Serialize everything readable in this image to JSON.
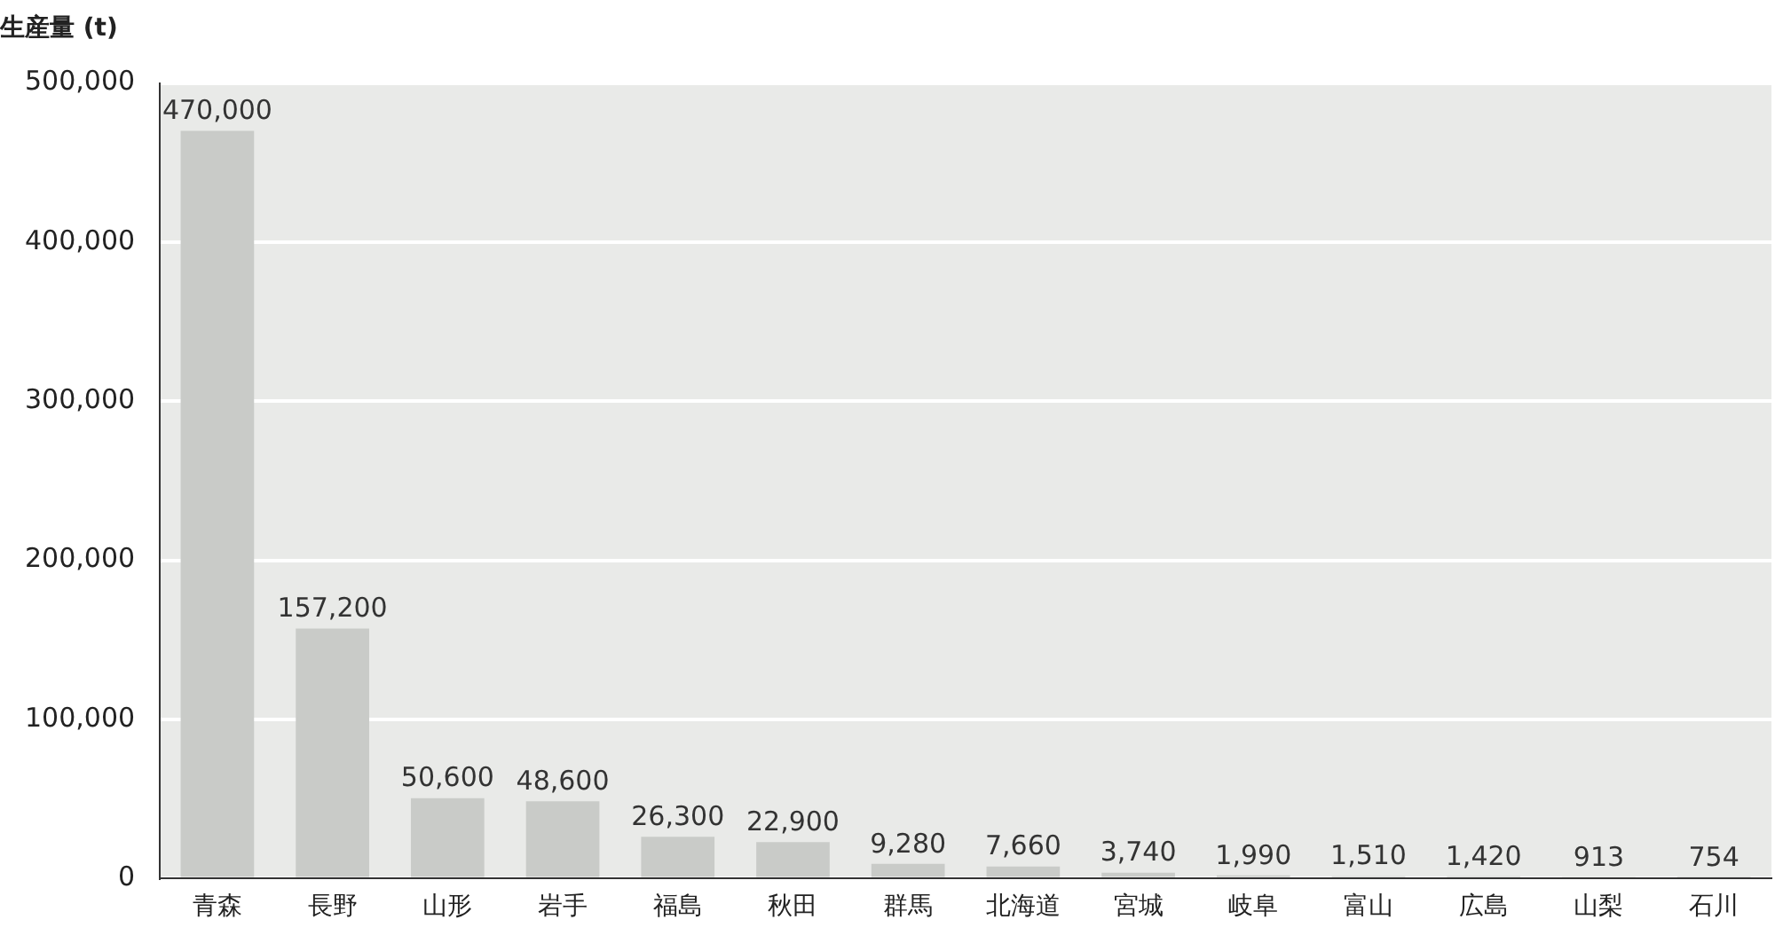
{
  "chart_data": {
    "type": "bar",
    "ylabel": "生産量 (t)",
    "categories": [
      "青森",
      "長野",
      "山形",
      "岩手",
      "福島",
      "秋田",
      "群馬",
      "北海道",
      "宮城",
      "岐阜",
      "富山",
      "広島",
      "山梨",
      "石川"
    ],
    "values": [
      470000,
      157200,
      50600,
      48600,
      26300,
      22900,
      9280,
      7660,
      3740,
      1990,
      1510,
      1420,
      913,
      754
    ],
    "value_labels": [
      "470,000",
      "157,200",
      "50,600",
      "48,600",
      "26,300",
      "22,900",
      "9,280",
      "7,660",
      "3,740",
      "1,990",
      "1,510",
      "1,420",
      "913",
      "754"
    ],
    "color": "#c9cbc8",
    "ylim": [
      0,
      500000
    ],
    "yticks": [
      0,
      {
        "value": 100000,
        "label": "100,000"
      },
      {
        "value": 200000,
        "label": "200,000"
      },
      {
        "value": 300000,
        "label": "300,000"
      },
      {
        "value": 400000,
        "label": "400,000"
      },
      {
        "value": 500000,
        "label": "500,000"
      }
    ],
    "grid": "y"
  }
}
